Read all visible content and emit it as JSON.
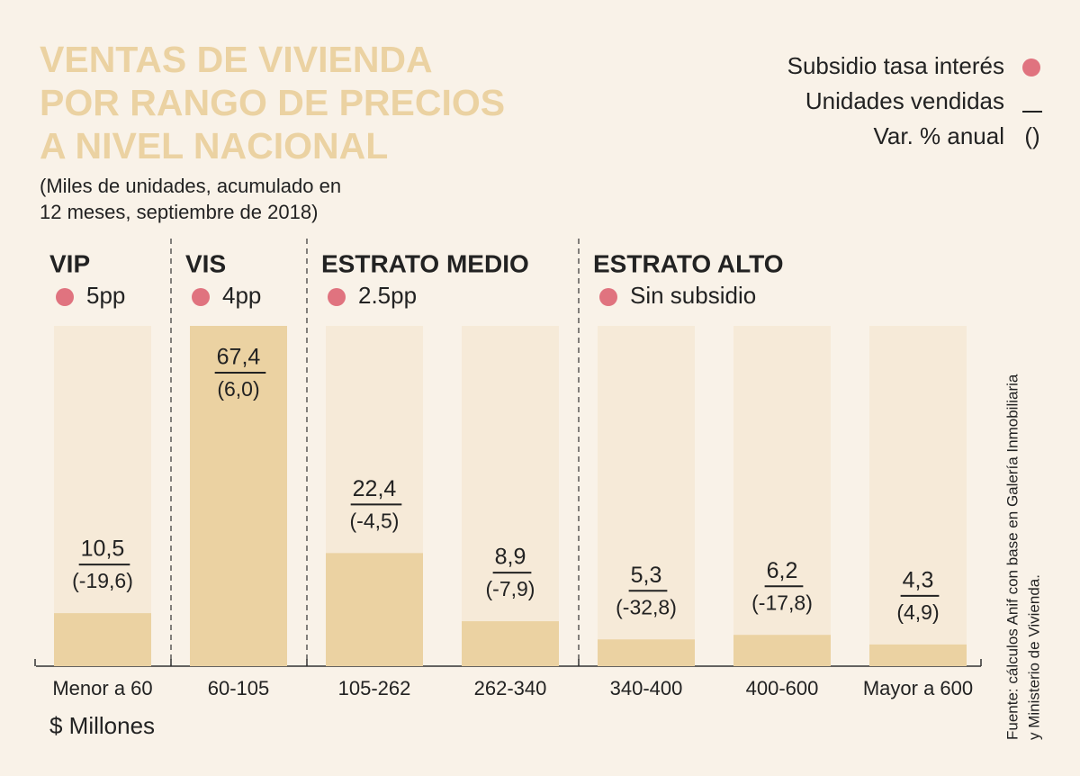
{
  "chart_data": {
    "type": "bar",
    "title": [
      "VENTAS DE VIVIENDA",
      "POR RANGO DE PRECIOS",
      "A NIVEL NACIONAL"
    ],
    "subtitle": [
      "(Miles de unidades, acumulado en",
      "12 meses, septiembre de 2018)"
    ],
    "legend": [
      {
        "label": "Subsidio tasa interés"
      },
      {
        "label": "Unidades vendidas"
      },
      {
        "label": "Var. % anual",
        "symbol": "()"
      }
    ],
    "groups": [
      {
        "name": "VIP",
        "subsidy": "5pp",
        "size": 1
      },
      {
        "name": "VIS",
        "subsidy": "4pp",
        "size": 1
      },
      {
        "name": "ESTRATO MEDIO",
        "subsidy": "2.5pp",
        "size": 2
      },
      {
        "name": "ESTRATO ALTO",
        "subsidy": "Sin subsidio",
        "size": 3
      }
    ],
    "categories": [
      "Menor a 60",
      "60-105",
      "105-262",
      "262-340",
      "340-400",
      "400-600",
      "Mayor a 600"
    ],
    "values": [
      10.5,
      67.4,
      22.4,
      8.9,
      5.3,
      6.2,
      4.3
    ],
    "value_labels": [
      "10,5",
      "67,4",
      "22,4",
      "8,9",
      "5,3",
      "6,2",
      "4,3"
    ],
    "changes": {
      "values": [
        -19.6,
        6.0,
        -4.5,
        -7.9,
        -32.8,
        -17.8,
        4.9
      ],
      "value_labels": [
        "(-19,6)",
        "(6,0)",
        "(-4,5)",
        "(-7,9)",
        "(-32,8)",
        "(-17,8)",
        "(4,9)"
      ]
    },
    "color": "#ebd2a2",
    "background_color": "#f6ead8",
    "ylim": [
      0,
      67.4
    ],
    "xlabel": "$ Millones",
    "source": [
      "Fuente: cálculos Anif con base en Galería Inmobiliaria",
      "y Ministerio de Vivienda."
    ]
  }
}
